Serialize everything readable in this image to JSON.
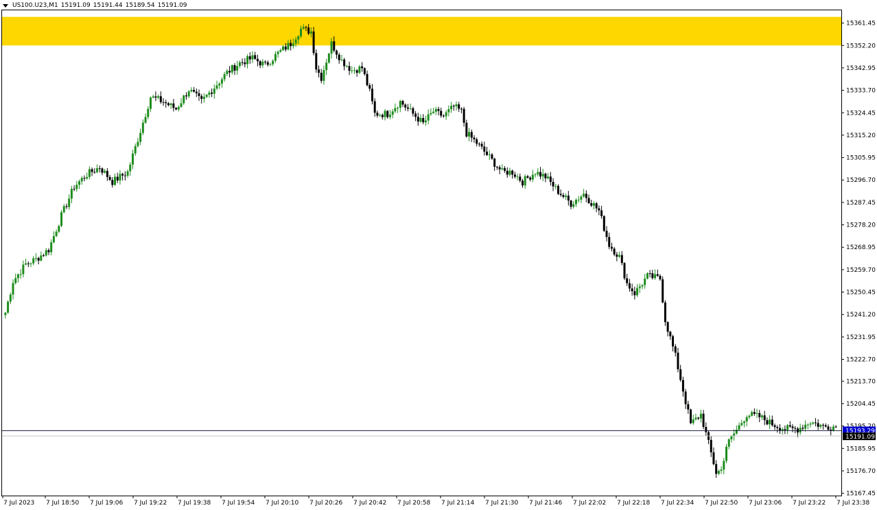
{
  "header": {
    "symbol": "US100.U23,M1",
    "open": "15191.09",
    "high": "15191.44",
    "low": "15189.54",
    "close": "15191.09"
  },
  "colors": {
    "bull": "#1e8c1e",
    "bear": "#000000",
    "zone": "#ffd700",
    "bid_line": "#1a1a3a",
    "ask_label_bg": "#0000cc",
    "bid_label_bg": "#000000"
  },
  "chart_data": {
    "type": "candlestick",
    "ylim": [
      15166.5,
      15367.0
    ],
    "y_ticks": [
      "15361.45",
      "15352.20",
      "15342.95",
      "15333.70",
      "15324.45",
      "15315.20",
      "15305.95",
      "15296.70",
      "15287.45",
      "15278.20",
      "15268.95",
      "15259.70",
      "15250.45",
      "15241.20",
      "15231.95",
      "15222.70",
      "15213.70",
      "15204.45",
      "15195.20",
      "15185.95",
      "15176.70",
      "15167.45"
    ],
    "x_ticks": [
      "7 Jul 2023",
      "7 Jul 18:50",
      "7 Jul 19:06",
      "7 Jul 19:22",
      "7 Jul 19:38",
      "7 Jul 19:54",
      "7 Jul 20:10",
      "7 Jul 20:26",
      "7 Jul 20:42",
      "7 Jul 20:58",
      "7 Jul 21:14",
      "7 Jul 21:30",
      "7 Jul 21:46",
      "7 Jul 22:02",
      "7 Jul 22:18",
      "7 Jul 22:34",
      "7 Jul 22:50",
      "7 Jul 23:06",
      "7 Jul 23:22",
      "7 Jul 23:38"
    ],
    "zone": [
      15352.2,
      15364.0
    ],
    "ask_label": "15193.29",
    "bid_label": "15191.09",
    "ask_price": 15193.29,
    "bid_price": 15191.09,
    "keyframes": [
      [
        0,
        15242
      ],
      [
        3,
        15255
      ],
      [
        8,
        15262
      ],
      [
        12,
        15264
      ],
      [
        17,
        15268
      ],
      [
        22,
        15282
      ],
      [
        27,
        15294
      ],
      [
        32,
        15299
      ],
      [
        37,
        15302
      ],
      [
        42,
        15296
      ],
      [
        48,
        15300
      ],
      [
        53,
        15317
      ],
      [
        57,
        15331
      ],
      [
        62,
        15329
      ],
      [
        67,
        15326
      ],
      [
        72,
        15334
      ],
      [
        77,
        15329
      ],
      [
        82,
        15335
      ],
      [
        87,
        15341
      ],
      [
        92,
        15345
      ],
      [
        97,
        15347
      ],
      [
        102,
        15344
      ],
      [
        107,
        15349
      ],
      [
        112,
        15353
      ],
      [
        116,
        15359
      ],
      [
        120,
        15358
      ],
      [
        122,
        15343
      ],
      [
        124,
        15339
      ],
      [
        128,
        15353
      ],
      [
        132,
        15346
      ],
      [
        136,
        15342
      ],
      [
        140,
        15343
      ],
      [
        143,
        15333
      ],
      [
        145,
        15324
      ],
      [
        150,
        15324
      ],
      [
        155,
        15329
      ],
      [
        160,
        15324
      ],
      [
        164,
        15320
      ],
      [
        168,
        15325
      ],
      [
        172,
        15323
      ],
      [
        176,
        15327
      ],
      [
        179,
        15325
      ],
      [
        181,
        15316
      ],
      [
        185,
        15312
      ],
      [
        190,
        15306
      ],
      [
        195,
        15300
      ],
      [
        199,
        15300
      ],
      [
        203,
        15296
      ],
      [
        208,
        15300
      ],
      [
        212,
        15298
      ],
      [
        217,
        15292
      ],
      [
        222,
        15287
      ],
      [
        227,
        15291
      ],
      [
        233,
        15284
      ],
      [
        237,
        15270
      ],
      [
        241,
        15265
      ],
      [
        244,
        15254
      ],
      [
        247,
        15250
      ],
      [
        252,
        15257
      ],
      [
        257,
        15256
      ],
      [
        259,
        15239
      ],
      [
        263,
        15224
      ],
      [
        266,
        15210
      ],
      [
        269,
        15196
      ],
      [
        273,
        15200
      ],
      [
        276,
        15188
      ],
      [
        279,
        15176
      ],
      [
        281,
        15177
      ],
      [
        283,
        15187
      ],
      [
        286,
        15192
      ],
      [
        291,
        15200
      ],
      [
        296,
        15199
      ],
      [
        301,
        15196
      ],
      [
        306,
        15194
      ],
      [
        311,
        15194
      ],
      [
        316,
        15197
      ],
      [
        321,
        15195
      ],
      [
        326,
        15195
      ]
    ]
  }
}
